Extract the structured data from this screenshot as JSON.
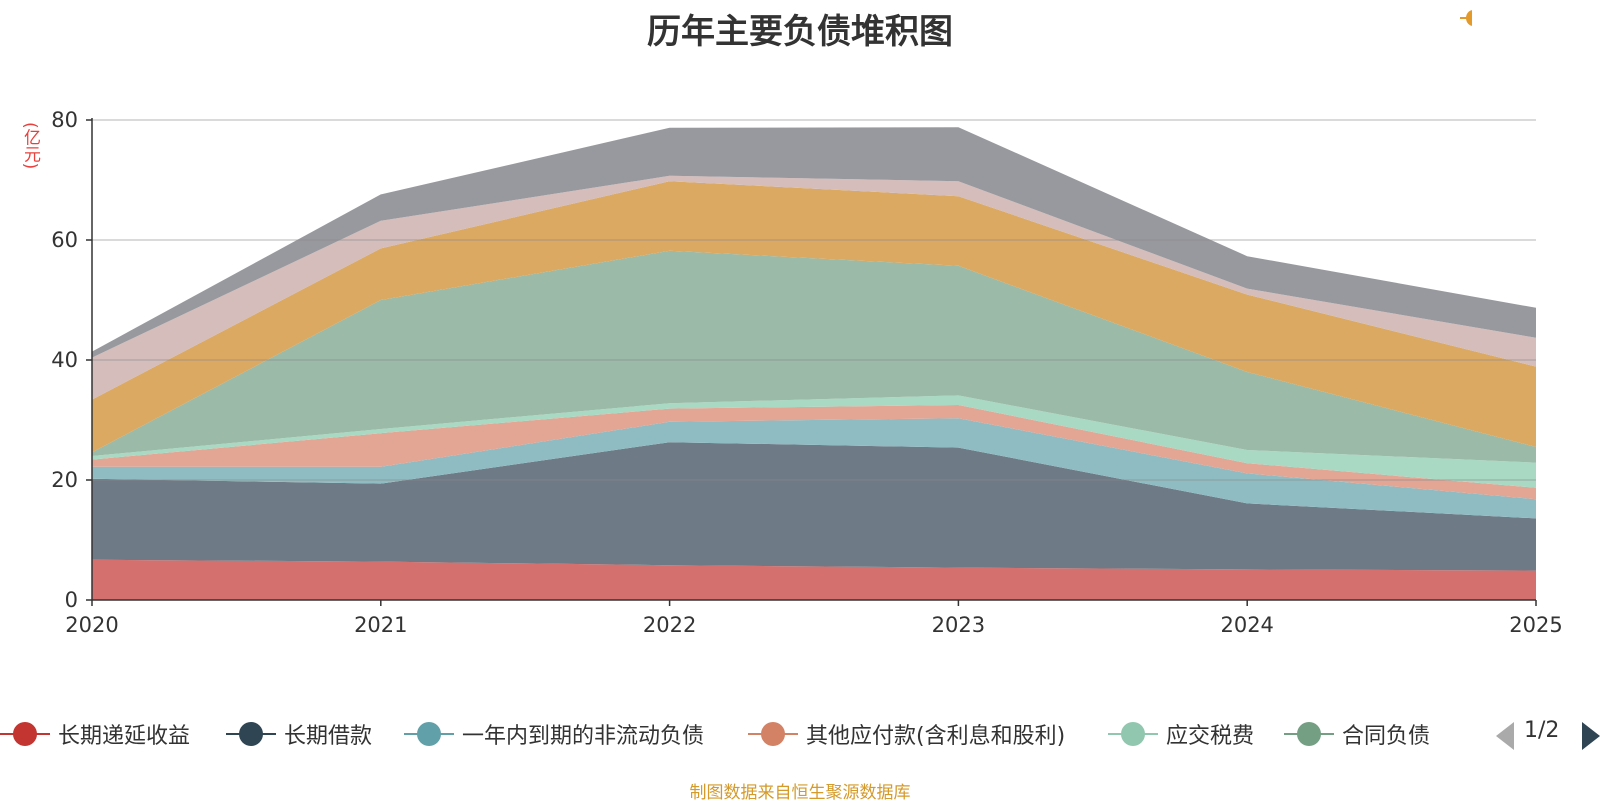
{
  "title": "历年主要负债堆积图",
  "y_unit": "(亿元)",
  "source_note": "制图数据来自恒生聚源数据库",
  "pager": {
    "text": "1/2"
  },
  "chart_data": {
    "type": "area",
    "stacked": true,
    "title": "历年主要负债堆积图",
    "xlabel": "",
    "ylabel": "(亿元)",
    "x": [
      "2020",
      "2021",
      "2022",
      "2023",
      "2024",
      "2025"
    ],
    "ylim": [
      0,
      80
    ],
    "yticks": [
      0,
      20,
      40,
      60,
      80
    ],
    "grid": true,
    "legend_position": "bottom",
    "series": [
      {
        "name": "长期递延收益",
        "color": "#d4716f",
        "values": [
          6.7,
          6.4,
          5.8,
          5.4,
          5.1,
          4.9
        ]
      },
      {
        "name": "长期借款",
        "color": "#6e7b86",
        "values": [
          13.5,
          13.0,
          20.5,
          20.0,
          11.0,
          8.7
        ]
      },
      {
        "name": "一年内到期的非流动负债",
        "color": "#8fbcc2",
        "values": [
          2.0,
          2.8,
          3.4,
          4.9,
          5.0,
          3.2
        ]
      },
      {
        "name": "其他应付款(含利息和股利)",
        "color": "#e3a594",
        "values": [
          1.2,
          5.6,
          2.2,
          2.2,
          1.7,
          1.9
        ]
      },
      {
        "name": "应交税费",
        "color": "#a9d8c3",
        "values": [
          0.6,
          0.7,
          0.9,
          1.6,
          2.2,
          4.2
        ]
      },
      {
        "name": "合同负债",
        "color": "#9bbaa7",
        "values": [
          0.6,
          21.5,
          25.4,
          21.6,
          13.0,
          2.6
        ]
      },
      {
        "name": "",
        "color": "#dba961",
        "values": [
          8.8,
          8.6,
          11.6,
          11.6,
          12.9,
          13.4
        ]
      },
      {
        "name": "",
        "color": "#d4bdbb",
        "values": [
          7.0,
          4.6,
          0.9,
          2.5,
          1.0,
          4.8
        ]
      },
      {
        "name": "",
        "color": "#98999e",
        "values": [
          1.0,
          4.4,
          8.0,
          9.0,
          5.4,
          5.0
        ]
      }
    ]
  }
}
